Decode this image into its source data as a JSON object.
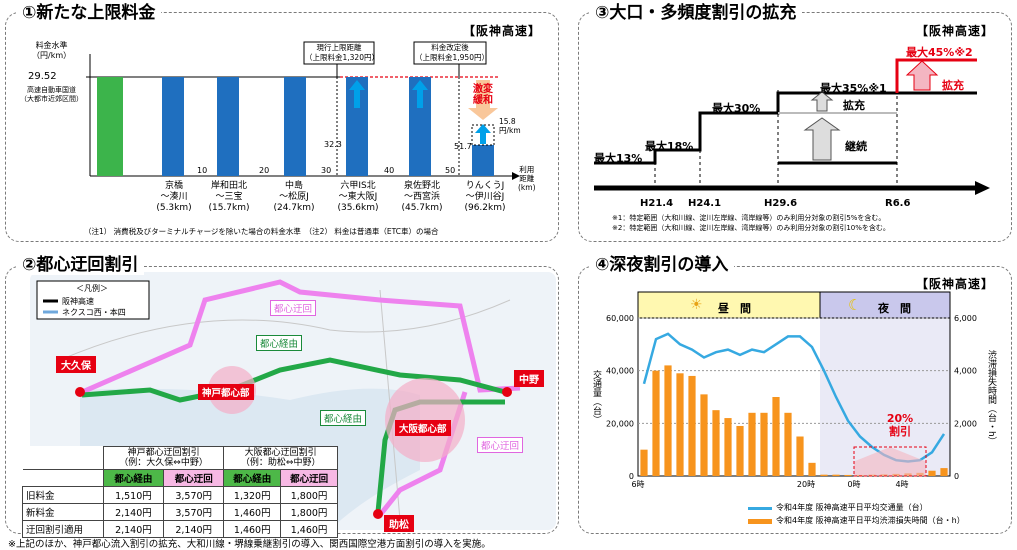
{
  "panel1": {
    "title": "①新たな上限料金",
    "tag": "【阪神高速】",
    "ylabel": "料金水準\n（円/km）",
    "level_value": "29.52",
    "green_label": "高速自動車国道\n（大都市近郊区間）",
    "callout_current": "現行上限距離\n（上限料金1,320円）",
    "callout_after": "料金改定後\n（上限料金1,950円）",
    "relief_label": "激変緩和",
    "value_15_8": "15.8\n円/km",
    "value_32_3": "32.3",
    "value_51_7": "51.7",
    "x_axis_label": "利用\n距離\n(km)",
    "ticks": [
      "10",
      "20",
      "30",
      "40",
      "50"
    ],
    "routes": [
      {
        "name": "京橋\n～湊川",
        "dist": "(5.3km)"
      },
      {
        "name": "岸和田北\n～三宝",
        "dist": "(15.7km)"
      },
      {
        "name": "中島\n～松原J",
        "dist": "(24.7km)"
      },
      {
        "name": "六甲IS北\n～東大阪J",
        "dist": "(35.6km)"
      },
      {
        "name": "泉佐野北\n～西宮浜",
        "dist": "(45.7km)"
      },
      {
        "name": "りんくうJ\n～伊川谷J",
        "dist": "(96.2km)"
      }
    ],
    "note": "（注1） 消費税及びターミナルチャージを除いた場合の料金水準　（注2） 料金は普通車（ETC車）の場合"
  },
  "panel2": {
    "title": "②都心迂回割引",
    "legend_title": "＜凡例＞",
    "legend_hanshin": "阪神高速",
    "legend_nexco": "ネクスコ西・本四",
    "place_okubo": "大久保",
    "place_nakano": "中野",
    "place_sukematsu": "助松",
    "kobe_center": "神戸都心部",
    "osaka_center": "大阪都心部",
    "label_detour_top": "都心迂回",
    "label_via_top": "都心経由",
    "label_via_mid": "都心経由",
    "label_detour_right": "都心迂回",
    "table": {
      "head_kobe": "神戸都心迂回割引\n（例：大久保⇔中野）",
      "head_osaka": "大阪都心迂回割引\n（例：助松⇔中野）",
      "sub": [
        "都心経由",
        "都心迂回",
        "都心経由",
        "都心迂回"
      ],
      "rows": [
        {
          "label": "旧料金",
          "vals": [
            "1,510円",
            "3,570円",
            "1,320円",
            "1,800円"
          ]
        },
        {
          "label": "新料金",
          "vals": [
            "2,140円",
            "3,570円",
            "1,460円",
            "1,800円"
          ]
        },
        {
          "label": "迂回割引適用",
          "vals": [
            "2,140円",
            "2,140円",
            "1,460円",
            "1,460円"
          ]
        }
      ]
    }
  },
  "panel3": {
    "title": "③大口・多頻度割引の拡充",
    "tag": "【阪神高速】",
    "steps": [
      "最大13%",
      "最大18%",
      "最大30%",
      "最大35%※1",
      "最大45%※2"
    ],
    "label_kakuju": "拡充",
    "label_keizoku": "継続",
    "label_kakuju_red": "拡充",
    "dates": [
      "H21.4",
      "H24.1",
      "H29.6",
      "R6.6"
    ],
    "note1": "※1：特定範囲（大和川線、淀川左岸線、湾岸線等）のみ利用分対象の割引5%を含む。",
    "note2": "※2：特定範囲（大和川線、淀川左岸線、湾岸線等）のみ利用分対象の割引10%を含む。"
  },
  "panel4": {
    "title": "④深夜割引の導入",
    "tag": "【阪神高速】",
    "day_label": "昼　間",
    "night_label": "夜　間",
    "y_left_label": "交通量（台）",
    "y_right_label": "渋滞損失時間（台・h）",
    "discount_label": "20%\n割引",
    "legend_line": "令和4年度 阪神高速平日平均交通量（台）",
    "legend_bar": "令和4年度 阪神高速平日平均渋滞損失時間（台・h）",
    "x_ticks": [
      "6時",
      "20時",
      "0時",
      "4時"
    ]
  },
  "chart_data": {
    "type": "bar",
    "x_tick_labels": [
      "6時",
      "20時",
      "0時",
      "4時"
    ],
    "y_left_ticks": [
      "0",
      "20,000",
      "40,000",
      "60,000"
    ],
    "y_right_ticks": [
      "0",
      "2,000",
      "4,000",
      "6,000"
    ],
    "ylim_left": [
      0,
      60000
    ],
    "ylim_right": [
      0,
      6000
    ],
    "series": [
      {
        "name": "令和4年度 阪神高速平日平均交通量（台）",
        "type": "line",
        "color": "#36a9e1",
        "values": [
          35000,
          52000,
          54000,
          50000,
          48000,
          45000,
          47000,
          48000,
          46000,
          48000,
          47000,
          50000,
          53000,
          53000,
          49000,
          40000,
          30000,
          21000,
          15000,
          11000,
          8000,
          6000,
          5500,
          6000,
          9000,
          16000
        ]
      },
      {
        "name": "令和4年度 阪神高速平日平均渋滞損失時間（台・h）",
        "type": "bar",
        "color": "#f7941d",
        "values": [
          1000,
          4000,
          4200,
          3900,
          3800,
          3100,
          2500,
          2200,
          1900,
          2400,
          2400,
          3000,
          2400,
          1500,
          500,
          50,
          50,
          40,
          40,
          50,
          60,
          80,
          100,
          120,
          200,
          300
        ]
      }
    ],
    "grid": true
  },
  "footnote": "※上記のほか、神戸都心流入割引の拡充、大和川線・堺線乗継割引の導入、関西国際空港方面割引の導入を実施。"
}
